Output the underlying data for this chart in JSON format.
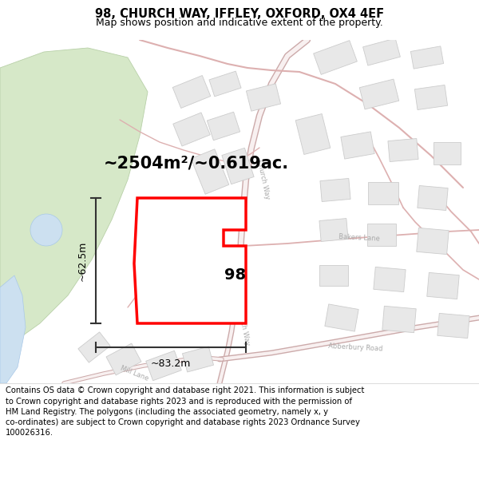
{
  "title_line1": "98, CHURCH WAY, IFFLEY, OXFORD, OX4 4EF",
  "title_line2": "Map shows position and indicative extent of the property.",
  "footer_text": "Contains OS data © Crown copyright and database right 2021. This information is subject to Crown copyright and database rights 2023 and is reproduced with the permission of HM Land Registry. The polygons (including the associated geometry, namely x, y co-ordinates) are subject to Crown copyright and database rights 2023 Ordnance Survey 100026316.",
  "area_label": "~2504m²/~0.619ac.",
  "number_label": "98",
  "width_label": "~83.2m",
  "height_label": "~62.5m",
  "map_bg": "#ffffff",
  "green_color": "#d6e8c8",
  "green_edge": "#b8d0a8",
  "water_color": "#cce0f0",
  "water_edge": "#a8c8e8",
  "road_fill": "#f5e8e8",
  "road_edge": "#d4a0a0",
  "building_fill": "#e8e8e8",
  "building_edge": "#cccccc",
  "prop_color": "#ff0000",
  "prop_fill": "#ffffff",
  "dim_color": "#333333",
  "title_fontsize": 10.5,
  "subtitle_fontsize": 9,
  "footer_fontsize": 7.2,
  "area_fontsize": 15,
  "number_fontsize": 14,
  "dim_fontsize": 9,
  "road_label_fontsize": 6,
  "road_label_color": "#aaaaaa"
}
